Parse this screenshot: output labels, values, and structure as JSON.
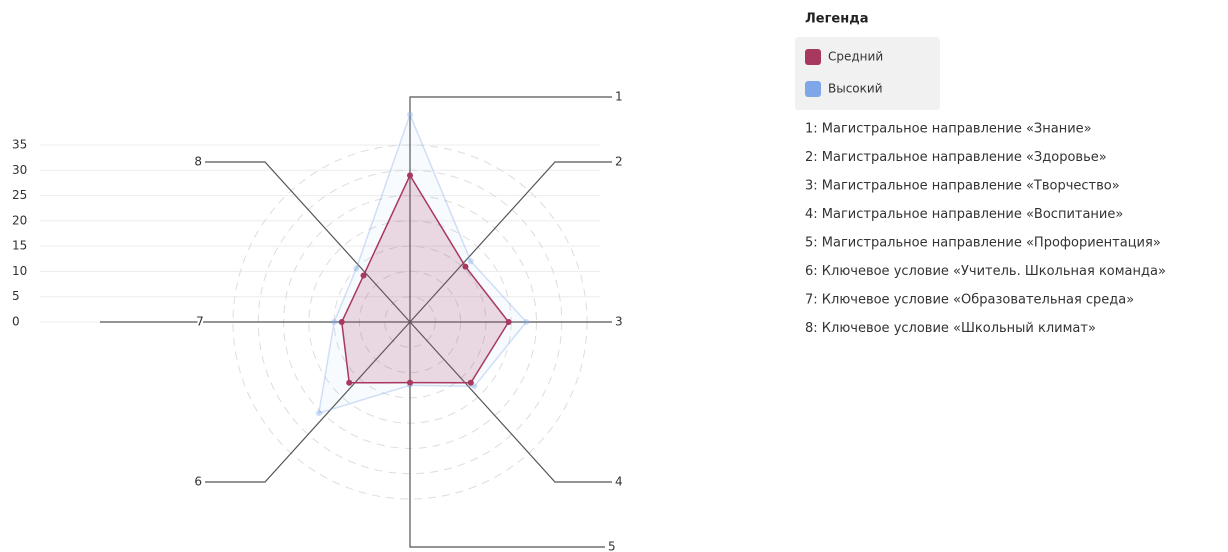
{
  "chart_data": {
    "type": "radar",
    "categories": [
      "1",
      "2",
      "3",
      "4",
      "5",
      "6",
      "7",
      "8"
    ],
    "series": [
      {
        "name": "Средний",
        "color": "#a8385f",
        "values": [
          29,
          15.5,
          19.5,
          17,
          12,
          17,
          13.5,
          13
        ]
      },
      {
        "name": "Высокий",
        "color": "#7fa7e8",
        "hidden": true,
        "values": [
          41,
          17,
          23,
          18,
          12.5,
          25.5,
          15,
          15
        ]
      }
    ],
    "ylim": [
      0,
      35
    ],
    "yticks": [
      0,
      5,
      10,
      15,
      20,
      25,
      30,
      35
    ],
    "grid": true,
    "legend_title": "Легенда",
    "axis_descriptions": [
      "1: Магистральное направление «Знание»",
      "2: Магистральное направление «Здоровье»",
      "3: Магистральное направление «Творчество»",
      "4: Магистральное направление «Воспитание»",
      "5: Магистральное направление «Профориентация»",
      "6: Ключевое условие «Учитель. Школьная команда»",
      "7: Ключевое условие «Образовательная среда»",
      "8: Ключевое условие «Школьный климат»"
    ]
  }
}
